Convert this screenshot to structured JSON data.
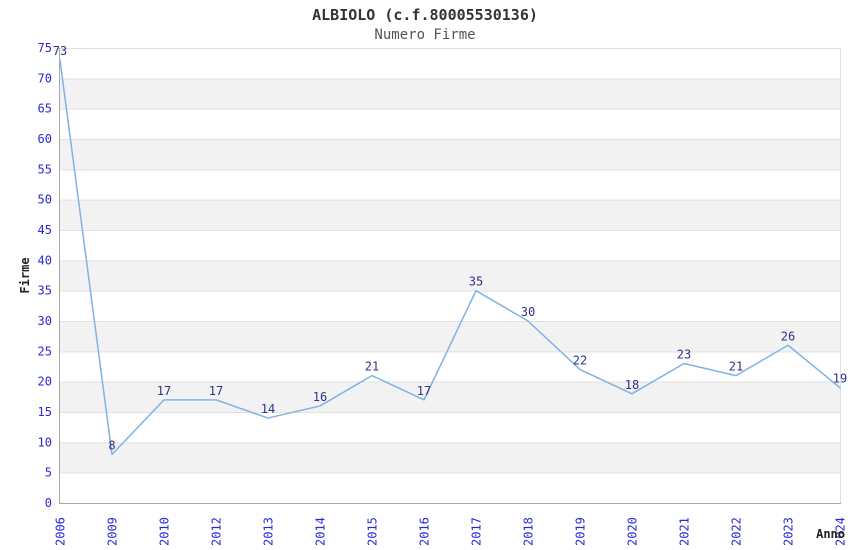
{
  "chart_data": {
    "type": "line",
    "title": "ALBIOLO (c.f.80005530136)",
    "subtitle": "Numero Firme",
    "xlabel": "Anno",
    "ylabel": "Firme",
    "categories": [
      "2006",
      "2009",
      "2010",
      "2012",
      "2013",
      "2014",
      "2015",
      "2016",
      "2017",
      "2018",
      "2019",
      "2020",
      "2021",
      "2022",
      "2023",
      "2024"
    ],
    "values": [
      73,
      8,
      17,
      17,
      14,
      16,
      21,
      17,
      35,
      30,
      22,
      18,
      23,
      21,
      26,
      19
    ],
    "ylim": [
      0,
      75
    ],
    "ytick_step": 5,
    "grid": true,
    "legend": "none",
    "colors": {
      "line": "#7fb2e6",
      "point_label": "#30308a",
      "tick_label": "#2929d6",
      "axis_text": "#222222",
      "band": "#f2f2f2",
      "gridline": "#e0e0e0",
      "axis_line": "#a8a8a8",
      "title": "#333333",
      "subtitle": "#555555"
    }
  }
}
